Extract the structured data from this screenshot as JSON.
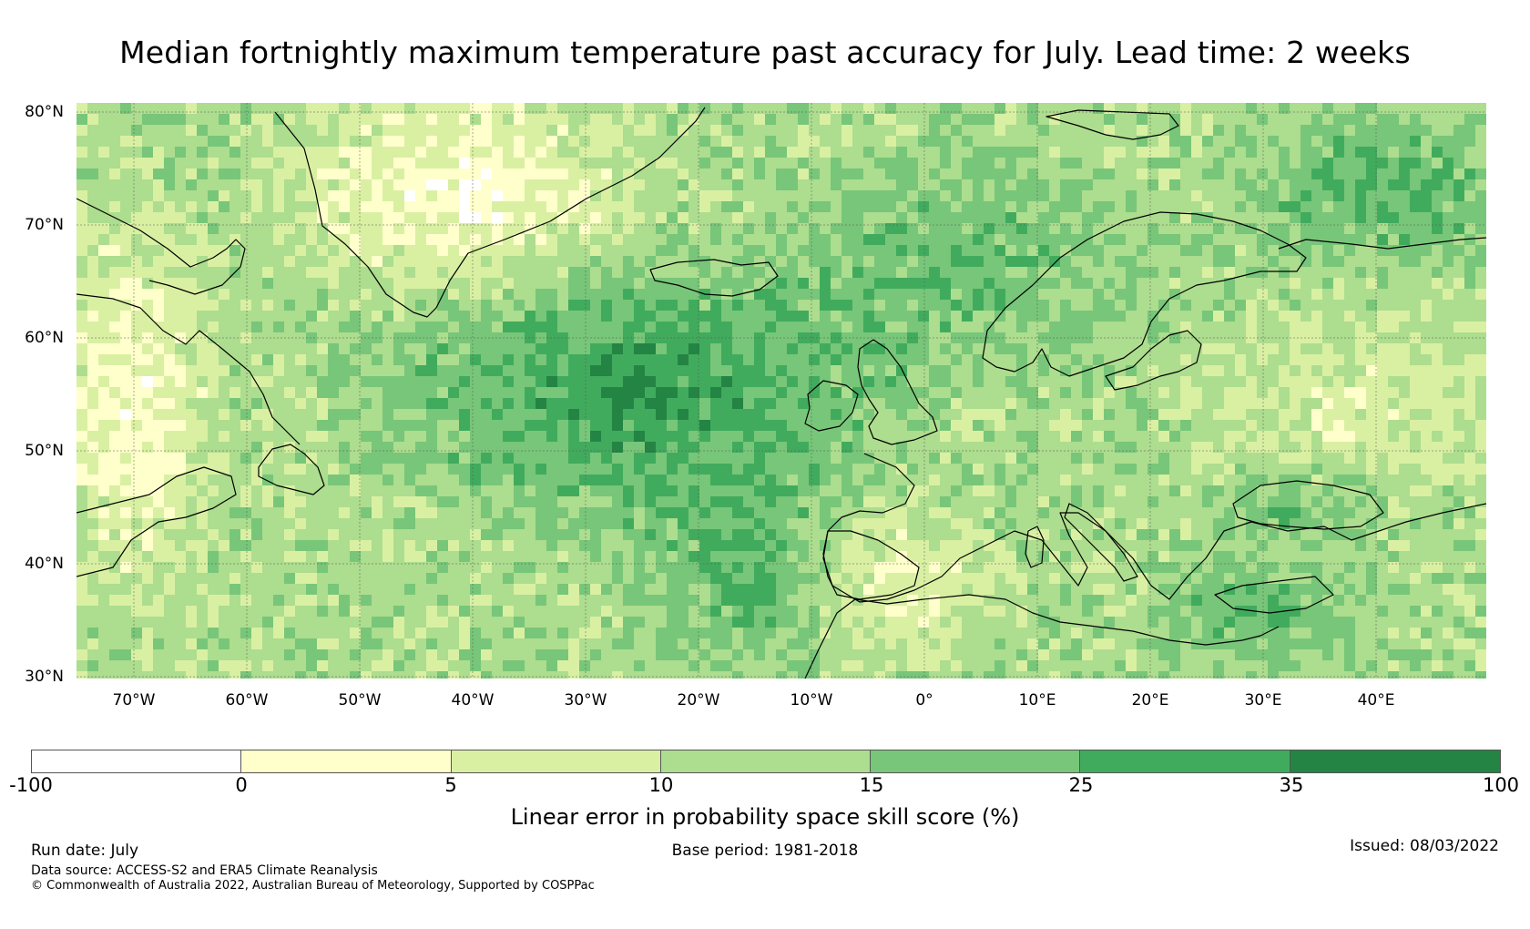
{
  "title": "Median fortnightly maximum temperature past accuracy for July. Lead time: 2 weeks",
  "map": {
    "region": "North Atlantic and Europe",
    "lon_range": [
      -75,
      50
    ],
    "lat_range": [
      30,
      81
    ],
    "lat_ticks": [
      "80°N",
      "70°N",
      "60°N",
      "50°N",
      "40°N",
      "30°N"
    ],
    "lon_ticks": [
      "70°W",
      "60°W",
      "50°W",
      "40°W",
      "30°W",
      "20°W",
      "10°W",
      "0°",
      "10°E",
      "20°E",
      "30°E",
      "40°E"
    ],
    "grid": true,
    "land_outline_color": "#000000"
  },
  "colorbar": {
    "ticks": [
      "-100",
      "0",
      "5",
      "10",
      "15",
      "25",
      "35",
      "100"
    ],
    "colors": [
      "#ffffff",
      "#ffffcc",
      "#d9f0a3",
      "#addd8e",
      "#78c679",
      "#41ab5d",
      "#238443"
    ],
    "label": "Linear error in probability space skill score (%)"
  },
  "footer": {
    "run_date": "Run date: July",
    "base_period": "Base period: 1981-2018",
    "issued": "Issued: 08/03/2022",
    "data_source": "Data source: ACCESS-S2 and ERA5 Climate Reanalysis",
    "copyright": "© Commonwealth of Australia 2022, Australian Bureau of Meteorology, Supported by COSPPac"
  }
}
